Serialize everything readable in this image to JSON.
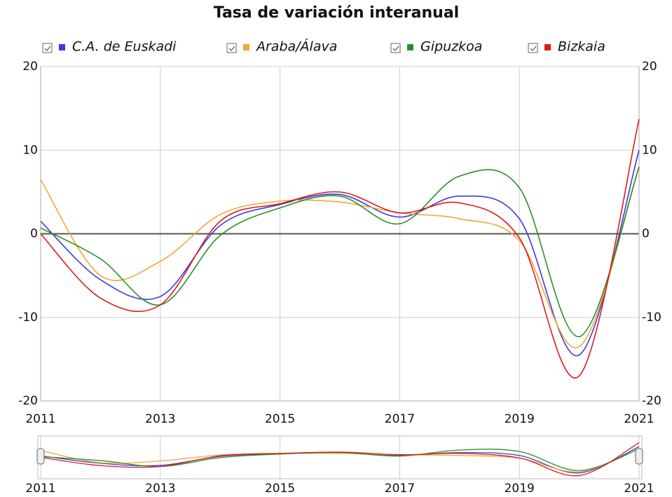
{
  "chart_data": {
    "type": "line",
    "title": "Tasa de variación interanual",
    "x": [
      2011,
      2012,
      2013,
      2014,
      2015,
      2016,
      2017,
      2018,
      2019,
      2020,
      2021
    ],
    "xlim": [
      2011,
      2021
    ],
    "xticks": [
      2011,
      2013,
      2015,
      2017,
      2019,
      2021
    ],
    "ylim": [
      -20,
      20
    ],
    "yticks": [
      -20,
      -10,
      0,
      10,
      20
    ],
    "grid": true,
    "legend": "top",
    "series": [
      {
        "name": "C.A. de Euskadi",
        "color": "#3a3ae8",
        "values": [
          1.5,
          -5.5,
          -7.5,
          1,
          3.5,
          4.7,
          2,
          4.5,
          1.8,
          -14.5,
          10
        ]
      },
      {
        "name": "Araba/Álava",
        "color": "#f0a830",
        "values": [
          6.5,
          -5,
          -3.3,
          2.3,
          3.9,
          3.8,
          2.5,
          1.8,
          -0.8,
          -13.5,
          8
        ]
      },
      {
        "name": "Gipuzkoa",
        "color": "#2a8f2a",
        "values": [
          0.7,
          -3,
          -8.5,
          -0.2,
          3.1,
          4.5,
          1.2,
          6.9,
          5.5,
          -12.3,
          8
        ]
      },
      {
        "name": "Bizkaia",
        "color": "#e01a1a",
        "values": [
          0,
          -7.7,
          -8.5,
          1.5,
          3.6,
          5,
          2.5,
          3.7,
          -0.5,
          -17,
          13.7
        ]
      }
    ]
  }
}
